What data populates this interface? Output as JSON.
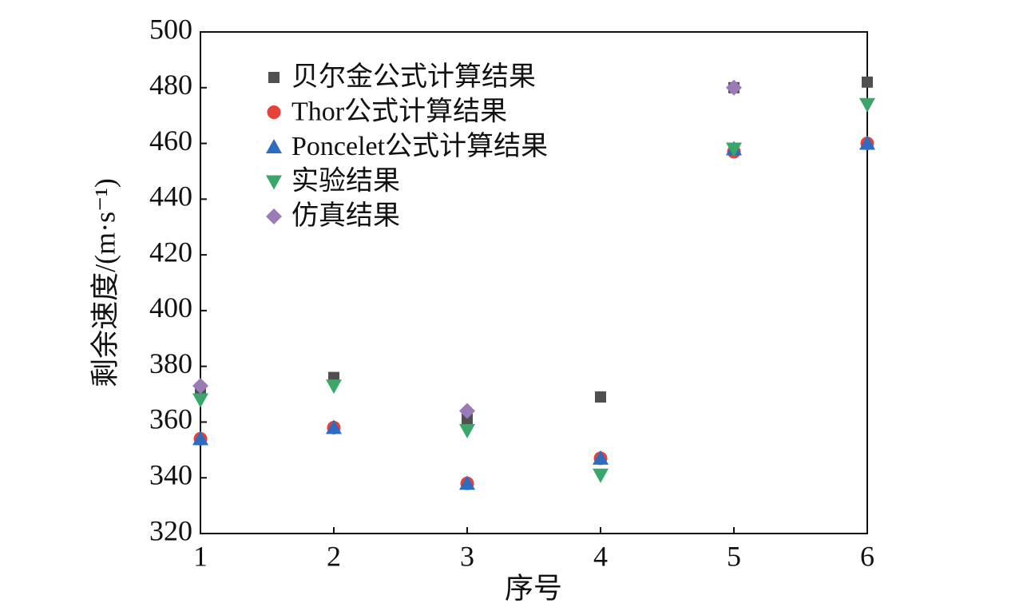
{
  "chart_data": {
    "type": "scatter",
    "xlabel": "序号",
    "ylabel": "剩余速度/(m·s⁻¹)",
    "x": [
      1,
      2,
      3,
      4,
      5,
      6
    ],
    "xlim": [
      1,
      6
    ],
    "xticks": [
      1,
      2,
      3,
      4,
      5,
      6
    ],
    "ylim": [
      320,
      500
    ],
    "yticks": [
      320,
      340,
      360,
      380,
      400,
      420,
      440,
      460,
      480,
      500
    ],
    "legend": "upper left",
    "series": [
      {
        "name": "贝尔金公式计算结果",
        "color": "#505050",
        "marker": "square",
        "values": [
          372,
          376,
          361,
          369,
          480,
          482
        ]
      },
      {
        "name": "Thor公式计算结果",
        "color": "#e8413c",
        "marker": "circle",
        "values": [
          354,
          358,
          338,
          347,
          457,
          460
        ]
      },
      {
        "name": "Poncelet公式计算结果",
        "color": "#2e6cc0",
        "marker": "triangle-up",
        "values": [
          354,
          358,
          338,
          347,
          458,
          460
        ]
      },
      {
        "name": "实验结果",
        "color": "#3aa66a",
        "marker": "triangle-down",
        "values": [
          368,
          373,
          357,
          341,
          458,
          474
        ]
      },
      {
        "name": "仿真结果",
        "color": "#9b7ab8",
        "marker": "diamond",
        "values": [
          373,
          null,
          364,
          null,
          480,
          null
        ]
      }
    ]
  }
}
